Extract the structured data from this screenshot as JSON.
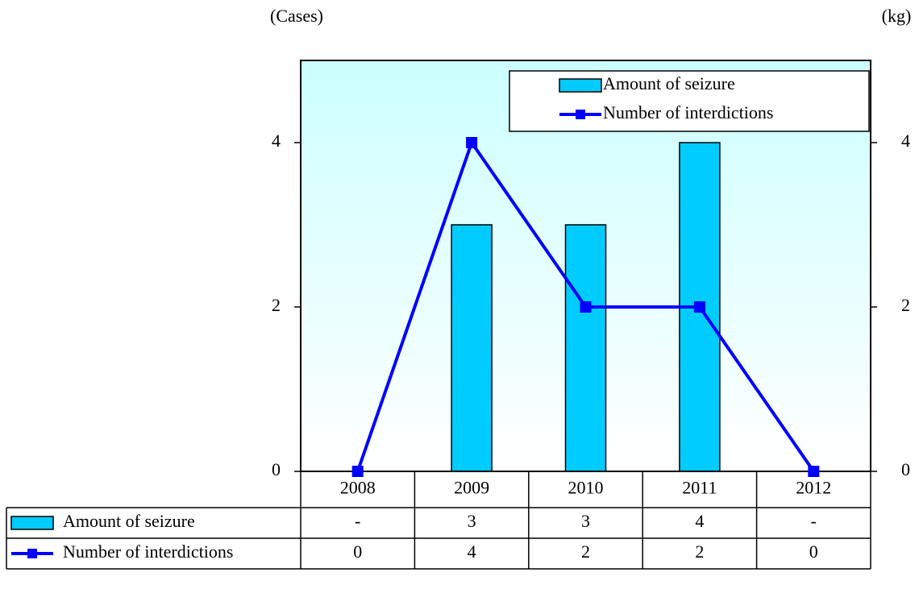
{
  "chart_data": {
    "type": "bar_line",
    "y_label": "(Cases)",
    "y2_label": "(kg)",
    "categories": [
      "2008",
      "2009",
      "2010",
      "2011",
      "2012"
    ],
    "series": [
      {
        "name": "Amount of seizure",
        "type": "bar",
        "axis": "y2",
        "color": "#00ccff",
        "values": [
          null,
          3,
          3,
          4,
          null
        ],
        "value_labels": [
          "-",
          "3",
          "3",
          "4",
          "-"
        ]
      },
      {
        "name": "Number of interdictions",
        "type": "line",
        "color": "#0000ff",
        "values": [
          0,
          4,
          2,
          2,
          0
        ]
      }
    ],
    "ylim": [
      0,
      5
    ],
    "yticks": [
      0,
      2,
      4
    ],
    "y2lim": [
      0,
      5
    ],
    "y2ticks": [
      0,
      2,
      4
    ],
    "legend": "upper right",
    "data_table": true
  }
}
